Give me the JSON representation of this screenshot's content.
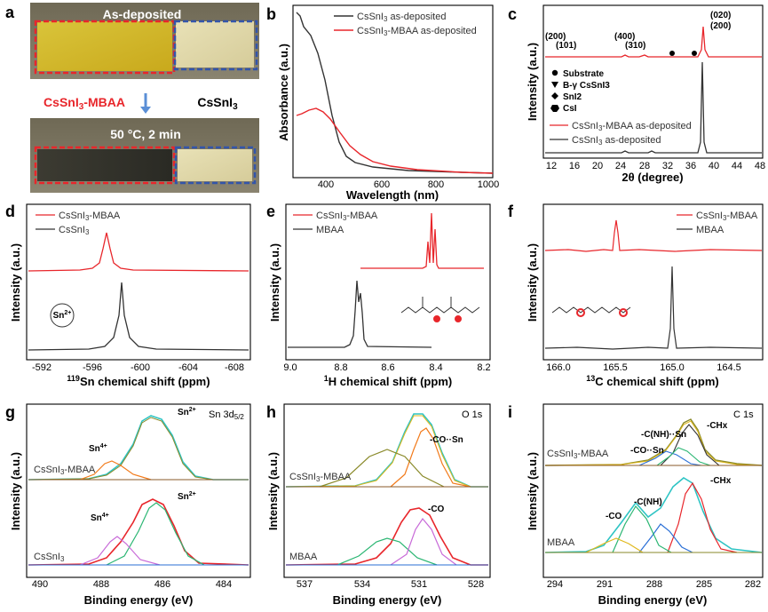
{
  "colors": {
    "red": "#e8262b",
    "black": "#222222",
    "green": "#2bb673",
    "orange": "#f27a1a",
    "olive": "#8a8a2a",
    "violet": "#c86ad8",
    "blue": "#2a6fd6",
    "teal": "#2ec4c4",
    "yellowgold": "#e0b81c"
  },
  "photo": {
    "label": "a",
    "top_caption": "As-deposited",
    "bottom_caption": "50 °C, 2 min",
    "left_sample": "CsSnI3-MBAA",
    "right_sample": "CsSnI3"
  },
  "panels": {
    "b": {
      "label": "b",
      "xlabel": "Wavelength (nm)",
      "ylabel": "Absorbance (a.u.)",
      "xticks": [
        "400",
        "600",
        "800",
        "1000"
      ],
      "legend": [
        "CsSnI3 as-deposited",
        "CsSnI3-MBAA as-deposited"
      ]
    },
    "c": {
      "label": "c",
      "xlabel": "2θ (degree)",
      "ylabel": "Intensity (a.u.)",
      "xticks": [
        "12",
        "16",
        "20",
        "24",
        "28",
        "32",
        "36",
        "40",
        "44",
        "48"
      ],
      "legend": [
        "CsSnI3-MBAA as-deposited",
        "CsSnI3 as-deposited"
      ],
      "key": [
        "Substrate",
        "B-γ CsSnI3",
        "SnI2",
        "CsI"
      ],
      "peak_labels": [
        "(200)",
        "(101)",
        "(400)",
        "(310)",
        "(020)",
        "(200)"
      ]
    },
    "d": {
      "label": "d",
      "xlabel": "119Sn chemical shift (ppm)",
      "ylabel": "Intensity (a.u.)",
      "xticks": [
        "-592",
        "-596",
        "-600",
        "-604",
        "-608"
      ],
      "legend": [
        "CsSnI3-MBAA",
        "CsSnI3"
      ],
      "marker": "Sn2+"
    },
    "e": {
      "label": "e",
      "xlabel": "1H chemical shift (ppm)",
      "ylabel": "Intensity (a.u.)",
      "xticks": [
        "9.0",
        "8.8",
        "8.6",
        "8.4",
        "8.2"
      ],
      "legend": [
        "CsSnI3-MBAA",
        "MBAA"
      ]
    },
    "f": {
      "label": "f",
      "xlabel": "13C chemical shift (ppm)",
      "ylabel": "Intensity (a.u.)",
      "xticks": [
        "166.0",
        "165.5",
        "165.0",
        "164.5"
      ],
      "legend": [
        "CsSnI3-MBAA",
        "MBAA"
      ]
    },
    "g": {
      "label": "g",
      "xlabel": "Binding energy (eV)",
      "ylabel": "Intensity (a.u.)",
      "xticks": [
        "490",
        "488",
        "486",
        "484"
      ],
      "title": "Sn 3d5/2",
      "samples": [
        "CsSnI3-MBAA",
        "CsSnI3"
      ],
      "annotations": [
        "Sn2+",
        "Sn4+",
        "Sn2+",
        "Sn4+"
      ]
    },
    "h": {
      "label": "h",
      "xlabel": "Binding energy (eV)",
      "ylabel": "Intensity (a.u.)",
      "xticks": [
        "537",
        "534",
        "531",
        "528"
      ],
      "title": "O 1s",
      "samples": [
        "CsSnI3-MBAA",
        "MBAA"
      ],
      "annotations": [
        "-CO··Sn",
        "-CO"
      ]
    },
    "i": {
      "label": "i",
      "xlabel": "Binding energy (eV)",
      "ylabel": "Intensity (a.u.)",
      "xticks": [
        "294",
        "291",
        "288",
        "285",
        "282"
      ],
      "title": "C 1s",
      "samples": [
        "CsSnI3-MBAA",
        "MBAA"
      ],
      "annotations": [
        "-C(NH)··Sn",
        "-CO··Sn",
        "-CHx",
        "-CO",
        "-C(NH)",
        "-CHx"
      ]
    }
  }
}
